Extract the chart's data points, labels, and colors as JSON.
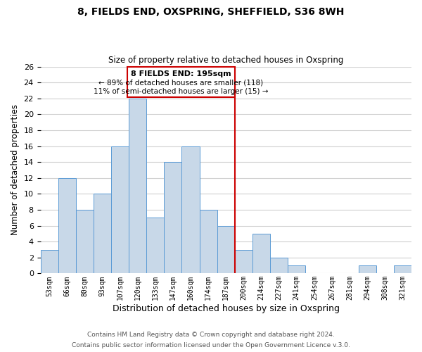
{
  "title": "8, FIELDS END, OXSPRING, SHEFFIELD, S36 8WH",
  "subtitle": "Size of property relative to detached houses in Oxspring",
  "xlabel": "Distribution of detached houses by size in Oxspring",
  "ylabel": "Number of detached properties",
  "bar_labels": [
    "53sqm",
    "66sqm",
    "80sqm",
    "93sqm",
    "107sqm",
    "120sqm",
    "133sqm",
    "147sqm",
    "160sqm",
    "174sqm",
    "187sqm",
    "200sqm",
    "214sqm",
    "227sqm",
    "241sqm",
    "254sqm",
    "267sqm",
    "281sqm",
    "294sqm",
    "308sqm",
    "321sqm"
  ],
  "bar_values": [
    3,
    12,
    8,
    10,
    16,
    22,
    7,
    14,
    16,
    8,
    6,
    3,
    5,
    2,
    1,
    0,
    0,
    0,
    1,
    0,
    1
  ],
  "bar_color": "#c8d8e8",
  "bar_edge_color": "#5b9bd5",
  "reference_line_label": "8 FIELDS END: 195sqm",
  "annotation_line1": "← 89% of detached houses are smaller (118)",
  "annotation_line2": "11% of semi-detached houses are larger (15) →",
  "ylim": [
    0,
    26
  ],
  "yticks": [
    0,
    2,
    4,
    6,
    8,
    10,
    12,
    14,
    16,
    18,
    20,
    22,
    24,
    26
  ],
  "footer_line1": "Contains HM Land Registry data © Crown copyright and database right 2024.",
  "footer_line2": "Contains public sector information licensed under the Open Government Licence v.3.0.",
  "box_line_color": "#cc0000",
  "background_color": "#ffffff",
  "grid_color": "#d0d0d0"
}
